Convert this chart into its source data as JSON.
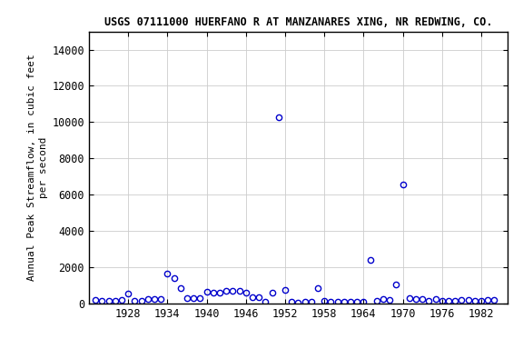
{
  "title": "USGS 07111000 HUERFANO R AT MANZANARES XING, NR REDWING, CO.",
  "ylabel_line1": "Annual Peak Streamflow, in cubic feet",
  "ylabel_line2": "per second",
  "xlim": [
    1922,
    1986
  ],
  "ylim": [
    0,
    15000
  ],
  "yticks": [
    0,
    2000,
    4000,
    6000,
    8000,
    10000,
    12000,
    14000
  ],
  "xticks": [
    1928,
    1934,
    1940,
    1946,
    1952,
    1958,
    1964,
    1970,
    1976,
    1982
  ],
  "marker_color": "#0000cc",
  "marker_facecolor": "none",
  "marker": "o",
  "marker_size": 4.5,
  "marker_lw": 1.0,
  "background_color": "#ffffff",
  "grid_color": "#cccccc",
  "title_fontsize": 8.5,
  "tick_fontsize": 8.5,
  "ylabel_fontsize": 8.0,
  "data_points": [
    [
      1923,
      200
    ],
    [
      1924,
      130
    ],
    [
      1925,
      160
    ],
    [
      1926,
      140
    ],
    [
      1927,
      180
    ],
    [
      1928,
      550
    ],
    [
      1929,
      170
    ],
    [
      1930,
      170
    ],
    [
      1931,
      230
    ],
    [
      1932,
      270
    ],
    [
      1933,
      270
    ],
    [
      1934,
      1650
    ],
    [
      1935,
      1400
    ],
    [
      1936,
      850
    ],
    [
      1937,
      280
    ],
    [
      1938,
      280
    ],
    [
      1939,
      310
    ],
    [
      1940,
      640
    ],
    [
      1941,
      580
    ],
    [
      1942,
      620
    ],
    [
      1943,
      720
    ],
    [
      1944,
      690
    ],
    [
      1945,
      700
    ],
    [
      1946,
      580
    ],
    [
      1947,
      350
    ],
    [
      1948,
      330
    ],
    [
      1949,
      80
    ],
    [
      1950,
      620
    ],
    [
      1951,
      10280
    ],
    [
      1952,
      740
    ],
    [
      1953,
      100
    ],
    [
      1954,
      50
    ],
    [
      1955,
      90
    ],
    [
      1956,
      100
    ],
    [
      1957,
      870
    ],
    [
      1958,
      170
    ],
    [
      1959,
      100
    ],
    [
      1960,
      100
    ],
    [
      1961,
      80
    ],
    [
      1962,
      80
    ],
    [
      1963,
      80
    ],
    [
      1964,
      100
    ],
    [
      1965,
      2430
    ],
    [
      1966,
      140
    ],
    [
      1967,
      230
    ],
    [
      1968,
      190
    ],
    [
      1969,
      1070
    ],
    [
      1970,
      6550
    ],
    [
      1971,
      310
    ],
    [
      1972,
      260
    ],
    [
      1973,
      260
    ],
    [
      1974,
      130
    ],
    [
      1975,
      230
    ],
    [
      1976,
      130
    ],
    [
      1977,
      130
    ],
    [
      1978,
      130
    ],
    [
      1979,
      180
    ],
    [
      1980,
      190
    ],
    [
      1981,
      160
    ],
    [
      1982,
      160
    ],
    [
      1983,
      180
    ],
    [
      1984,
      200
    ]
  ]
}
